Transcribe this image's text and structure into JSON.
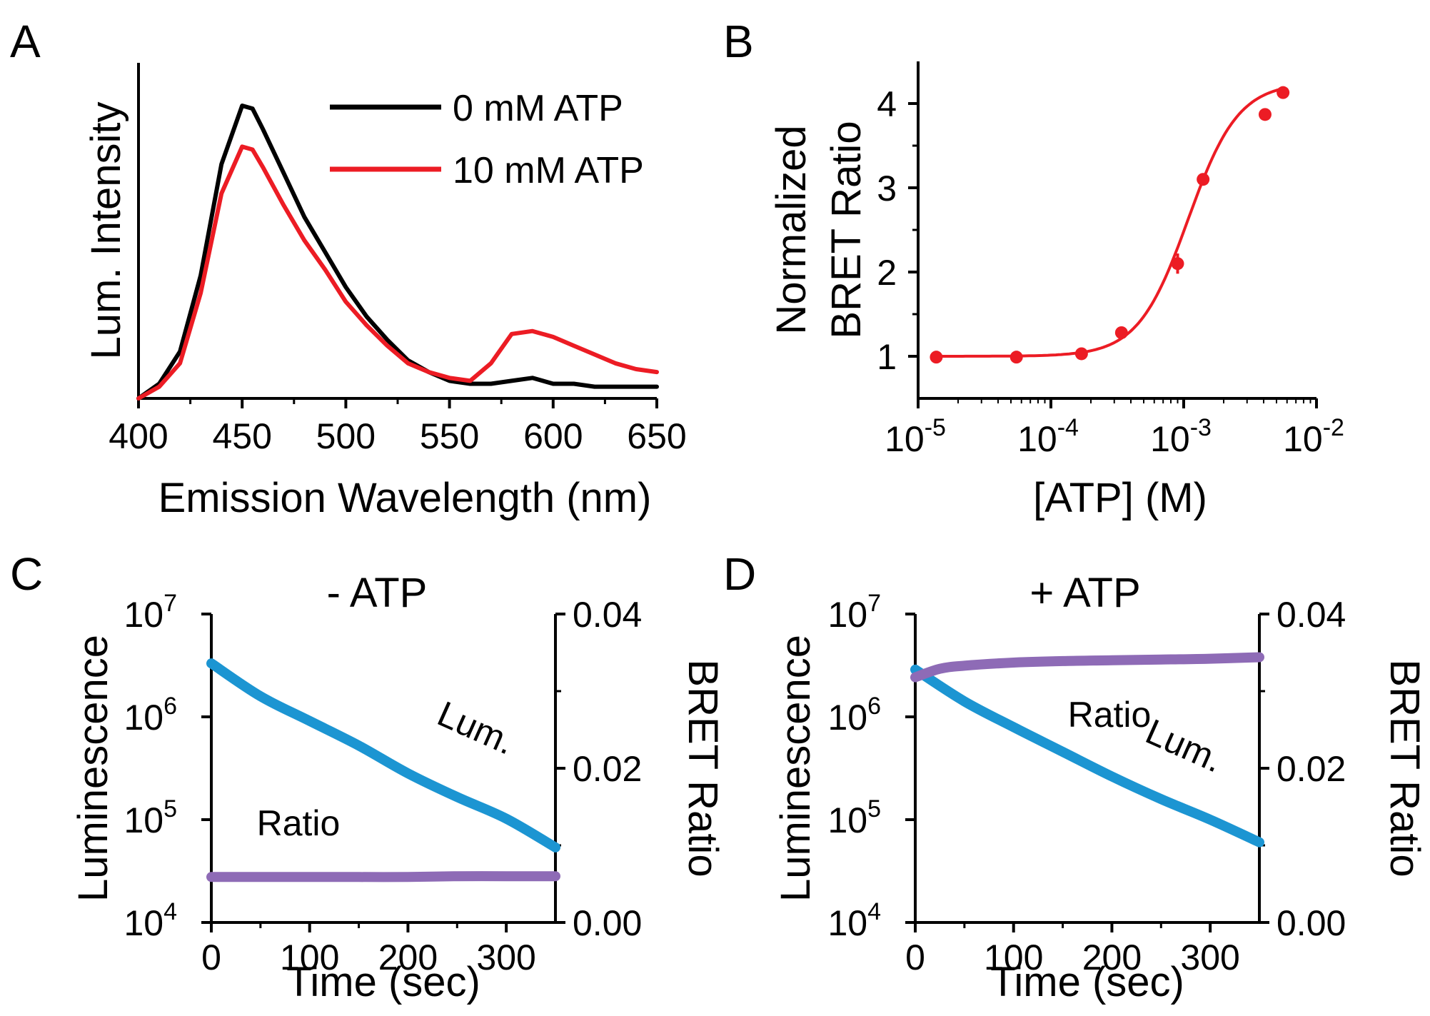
{
  "chart_data": [
    {
      "panel": "A",
      "type": "line",
      "xlabel": "Emission Wavelength (nm)",
      "ylabel": "Lum. Intensity",
      "xlim": [
        400,
        650
      ],
      "ylim": [
        0,
        1.0
      ],
      "xticks": [
        "400",
        "450",
        "500",
        "550",
        "600",
        "650"
      ],
      "grid": false,
      "legend": "top-right",
      "series": [
        {
          "name": "0 mM ATP",
          "color": "#000000",
          "x": [
            400,
            410,
            420,
            430,
            440,
            450,
            455,
            460,
            470,
            480,
            490,
            500,
            510,
            520,
            530,
            540,
            550,
            560,
            570,
            580,
            590,
            600,
            610,
            620,
            630,
            640,
            650
          ],
          "y": [
            0.0,
            0.05,
            0.16,
            0.42,
            0.8,
            1.0,
            0.99,
            0.92,
            0.77,
            0.62,
            0.5,
            0.38,
            0.28,
            0.2,
            0.13,
            0.09,
            0.06,
            0.05,
            0.05,
            0.06,
            0.07,
            0.05,
            0.05,
            0.04,
            0.04,
            0.04,
            0.04
          ]
        },
        {
          "name": "10 mM ATP",
          "color": "#ec1c24",
          "x": [
            400,
            410,
            420,
            430,
            440,
            450,
            455,
            460,
            470,
            480,
            490,
            500,
            510,
            520,
            530,
            540,
            550,
            560,
            570,
            580,
            590,
            600,
            610,
            620,
            630,
            640,
            650
          ],
          "y": [
            0.0,
            0.04,
            0.12,
            0.36,
            0.7,
            0.86,
            0.85,
            0.79,
            0.66,
            0.54,
            0.44,
            0.33,
            0.25,
            0.18,
            0.12,
            0.09,
            0.07,
            0.06,
            0.12,
            0.22,
            0.23,
            0.21,
            0.18,
            0.15,
            0.12,
            0.1,
            0.09
          ]
        }
      ]
    },
    {
      "panel": "B",
      "type": "scatter",
      "xlabel": "[ATP] (M)",
      "ylabel": "Normalized BRET Ratio",
      "xscale": "log",
      "xlim": [
        1e-05,
        0.01
      ],
      "ylim": [
        0.5,
        4.5
      ],
      "xticks": [
        {
          "base": "10",
          "exp": "-5"
        },
        {
          "base": "10",
          "exp": "-4"
        },
        {
          "base": "10",
          "exp": "-3"
        },
        {
          "base": "10",
          "exp": "-2"
        }
      ],
      "yticks": [
        "1",
        "2",
        "3",
        "4"
      ],
      "grid": false,
      "color": "#ec1c24",
      "points": {
        "x": [
          1.37e-05,
          5.5e-05,
          0.00017,
          0.00034,
          0.0009,
          0.0014,
          0.0041,
          0.0056
        ],
        "y": [
          0.99,
          0.99,
          1.03,
          1.28,
          2.1,
          3.1,
          3.87,
          4.13
        ],
        "err": [
          0.03,
          0.03,
          0.04,
          0.07,
          0.12,
          0.07,
          0.05,
          0.05
        ]
      },
      "fit": {
        "bottom": 1.0,
        "top": 4.25,
        "ec50": 0.00108,
        "hill": 2.3
      }
    },
    {
      "panel": "C",
      "type": "line",
      "title": "- ATP",
      "xlabel": "Time (sec)",
      "ylabel": "Luminescence",
      "y2label": "BRET Ratio",
      "xlim": [
        0,
        350
      ],
      "xticks": [
        "0",
        "100",
        "200",
        "300"
      ],
      "ylim_log10": [
        4,
        7
      ],
      "yticks": [
        {
          "base": "10",
          "exp": "4"
        },
        {
          "base": "10",
          "exp": "5"
        },
        {
          "base": "10",
          "exp": "6"
        },
        {
          "base": "10",
          "exp": "7"
        }
      ],
      "y2lim": [
        0.0,
        0.04
      ],
      "y2ticks": [
        "0.00",
        "0.02",
        "0.04"
      ],
      "series": [
        {
          "name": "Lum.",
          "axis": "left",
          "color": "#1c95d2",
          "x": [
            0,
            50,
            100,
            150,
            200,
            250,
            300,
            350
          ],
          "y_log10": [
            6.52,
            6.2,
            5.96,
            5.72,
            5.45,
            5.22,
            5.01,
            4.73
          ]
        },
        {
          "name": "Ratio",
          "axis": "right",
          "color": "#8e6bb6",
          "x": [
            0,
            50,
            100,
            150,
            200,
            250,
            300,
            350
          ],
          "y": [
            0.0059,
            0.0059,
            0.0059,
            0.0059,
            0.0059,
            0.006,
            0.006,
            0.006
          ]
        }
      ],
      "labels": {
        "lum": "Lum.",
        "ratio": "Ratio"
      }
    },
    {
      "panel": "D",
      "type": "line",
      "title": "+ ATP",
      "xlabel": "Time (sec)",
      "ylabel": "Luminescence",
      "y2label": "BRET Ratio",
      "xlim": [
        0,
        350
      ],
      "xticks": [
        "0",
        "100",
        "200",
        "300"
      ],
      "ylim_log10": [
        4,
        7
      ],
      "yticks": [
        {
          "base": "10",
          "exp": "4"
        },
        {
          "base": "10",
          "exp": "5"
        },
        {
          "base": "10",
          "exp": "6"
        },
        {
          "base": "10",
          "exp": "7"
        }
      ],
      "y2lim": [
        0.0,
        0.04
      ],
      "y2ticks": [
        "0.00",
        "0.02",
        "0.04"
      ],
      "series": [
        {
          "name": "Lum.",
          "axis": "left",
          "color": "#1c95d2",
          "x": [
            0,
            50,
            100,
            150,
            200,
            250,
            300,
            350
          ],
          "y_log10": [
            6.46,
            6.15,
            5.9,
            5.66,
            5.42,
            5.2,
            5.0,
            4.78
          ]
        },
        {
          "name": "Ratio",
          "axis": "right",
          "color": "#8e6bb6",
          "x": [
            0,
            25,
            50,
            100,
            150,
            200,
            250,
            300,
            350
          ],
          "y": [
            0.0318,
            0.0329,
            0.0333,
            0.0337,
            0.0339,
            0.034,
            0.0341,
            0.0342,
            0.0344
          ]
        }
      ],
      "labels": {
        "lum": "Lum.",
        "ratio": "Ratio"
      }
    }
  ]
}
